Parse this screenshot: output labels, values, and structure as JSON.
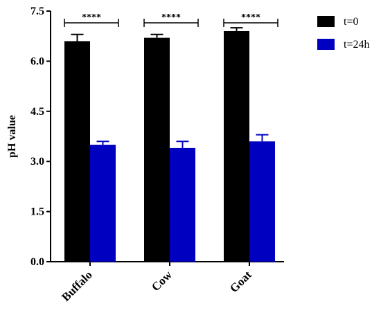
{
  "chart_data": {
    "type": "bar",
    "title": "",
    "xlabel": "",
    "ylabel": "pH value",
    "ylim": [
      0,
      7.5
    ],
    "yticks": [
      "0.0",
      "1.5",
      "3.0",
      "4.5",
      "6.0",
      "7.5"
    ],
    "categories": [
      "Buffalo",
      "Cow",
      "Goat"
    ],
    "series": [
      {
        "name": "t=0",
        "color": "#000000",
        "values": [
          6.6,
          6.7,
          6.9
        ],
        "errors": [
          0.2,
          0.1,
          0.1
        ]
      },
      {
        "name": "t=24h",
        "color": "#0000c0",
        "values": [
          3.5,
          3.4,
          3.6
        ],
        "errors": [
          0.1,
          0.2,
          0.2
        ]
      }
    ],
    "significance": [
      "****",
      "****",
      "****"
    ],
    "legend_position": "top-right",
    "grid": false
  }
}
